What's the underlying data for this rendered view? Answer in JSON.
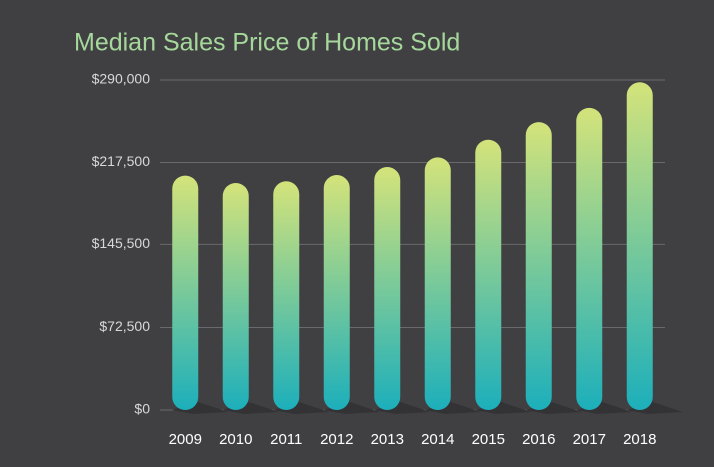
{
  "chart_data": {
    "type": "bar",
    "title": "Median Sales Price of Homes Sold",
    "categories": [
      "2009",
      "2010",
      "2011",
      "2012",
      "2013",
      "2014",
      "2015",
      "2016",
      "2017",
      "2018"
    ],
    "values": [
      206000,
      199500,
      201000,
      206500,
      213500,
      222000,
      237500,
      253000,
      265500,
      288000
    ],
    "colors": [
      "#d4e37a",
      "#1cafbb"
    ],
    "ylim": [
      0,
      290000
    ],
    "yticks": [
      {
        "value": 0,
        "label": "$0"
      },
      {
        "value": 72500,
        "label": "$72,500"
      },
      {
        "value": 145500,
        "label": "$145,500"
      },
      {
        "value": 217500,
        "label": "$217,500"
      },
      {
        "value": 290000,
        "label": "$290,000"
      }
    ],
    "grid": true
  }
}
